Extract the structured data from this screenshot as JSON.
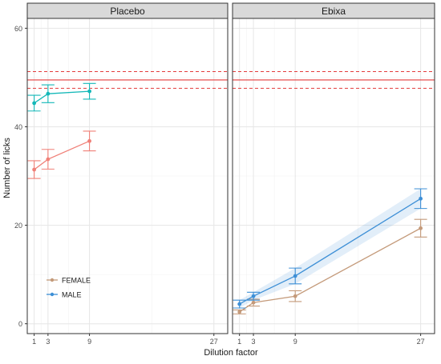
{
  "chart_data": {
    "type": "line",
    "xlabel": "Dilution factor",
    "ylabel": "Number of licks",
    "x_ticks": [
      1,
      3,
      9,
      27
    ],
    "y_ticks": [
      0,
      20,
      40,
      60
    ],
    "xlim": [
      0,
      29
    ],
    "ylim": [
      -2,
      62
    ],
    "grid": true,
    "legend_position": "bottom-left of first panel",
    "reference_line": {
      "value": 49.5,
      "lower": 47.8,
      "upper": 51.2,
      "color": "#e33b3b"
    },
    "panels": [
      {
        "title": "Placebo",
        "series": [
          {
            "name": "FEMALE",
            "color": "#f08078",
            "x": [
              1,
              3,
              9
            ],
            "y": [
              31.3,
              33.4,
              37.1
            ],
            "err": [
              1.8,
              2.0,
              2.0
            ],
            "band": false
          },
          {
            "name": "MALE",
            "color": "#14b8b8",
            "x": [
              1,
              3,
              9
            ],
            "y": [
              44.8,
              46.7,
              47.2
            ],
            "err": [
              1.6,
              1.8,
              1.6
            ],
            "band": false
          }
        ]
      },
      {
        "title": "Ebixa",
        "series": [
          {
            "name": "FEMALE",
            "color": "#c49a7a",
            "x": [
              1,
              3,
              9,
              27
            ],
            "y": [
              2.4,
              4.3,
              5.6,
              19.4
            ],
            "err": [
              0.4,
              0.7,
              1.1,
              1.8
            ],
            "band": false
          },
          {
            "name": "MALE",
            "color": "#3d8fd6",
            "x": [
              1,
              3,
              9,
              27
            ],
            "y": [
              4.0,
              5.6,
              9.7,
              25.4
            ],
            "err": [
              0.8,
              0.8,
              1.6,
              2.0
            ],
            "band": true
          }
        ]
      }
    ],
    "legend": [
      {
        "name": "FEMALE",
        "color": "#c49a7a"
      },
      {
        "name": "MALE",
        "color": "#3d8fd6"
      }
    ]
  }
}
